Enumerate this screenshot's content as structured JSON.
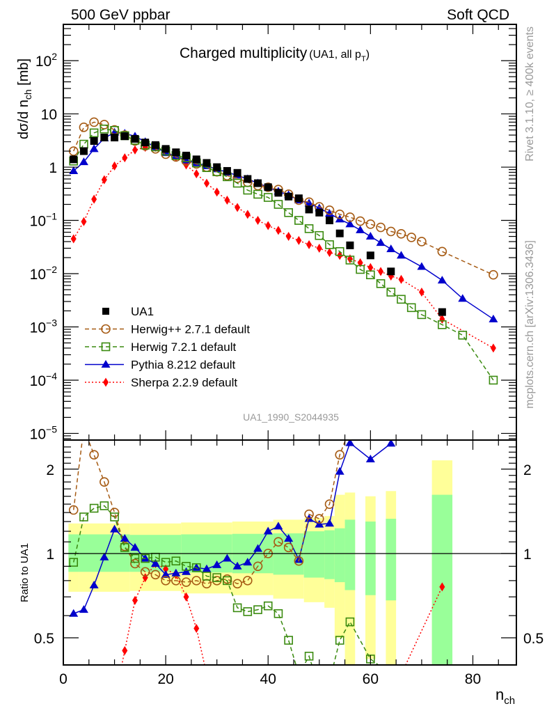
{
  "header": {
    "left": "500 GeV ppbar",
    "right": "Soft QCD"
  },
  "side_labels": {
    "rivet": "Rivet 3.1.10, ≥ 400k events",
    "mcplots": "mcplots.cern.ch [arXiv:1306.3436]"
  },
  "chart_data": [
    {
      "type": "scatter",
      "panel": "main",
      "title": "Charged multiplicity",
      "title_sub": "(UA1, all p",
      "title_sub_T": "T",
      "title_sub_end": ")",
      "analysis_id": "UA1_1990_S2044935",
      "ylabel": "dσ/d n",
      "ylabel_sub": "ch",
      "ylabel_unit": " [mb]",
      "yscale": "log",
      "ylim": [
        7.5e-06,
        480
      ],
      "xlim": [
        0,
        88.5
      ],
      "ytick_labels": [
        {
          "value": 100,
          "base": "10",
          "exp": "2"
        },
        {
          "value": 10,
          "base": "10",
          "exp": ""
        },
        {
          "value": 1,
          "base": "1",
          "exp": ""
        },
        {
          "value": 0.1,
          "base": "10",
          "exp": "−1"
        },
        {
          "value": 0.01,
          "base": "10",
          "exp": "−2"
        },
        {
          "value": 0.001,
          "base": "10",
          "exp": "−3"
        },
        {
          "value": 0.0001,
          "base": "10",
          "exp": "−4"
        },
        {
          "value": 1e-05,
          "base": "10",
          "exp": "−5"
        }
      ],
      "legend_position": "bottom-left",
      "series": [
        {
          "name": "UA1",
          "style": "data",
          "color": "#000000",
          "marker": "square-filled",
          "x": [
            2,
            4,
            6,
            8,
            10,
            12,
            14,
            16,
            18,
            20,
            22,
            24,
            26,
            28,
            30,
            32,
            34,
            36,
            38,
            40,
            42,
            44,
            46,
            48,
            50,
            52,
            54,
            56,
            60,
            64,
            74
          ],
          "values": [
            1.4,
            2.0,
            3.1,
            3.6,
            3.6,
            3.8,
            3.4,
            2.9,
            2.6,
            2.2,
            1.9,
            1.65,
            1.4,
            1.2,
            1.0,
            0.85,
            0.78,
            0.6,
            0.5,
            0.42,
            0.33,
            0.28,
            0.26,
            0.16,
            0.14,
            0.1,
            0.057,
            0.034,
            0.022,
            0.011,
            0.0019
          ]
        },
        {
          "name": "Herwig++ 2.7.1 default",
          "style": "dashed",
          "color": "#a65b14",
          "marker": "circle-open",
          "x": [
            2,
            4,
            6,
            8,
            10,
            12,
            14,
            16,
            18,
            20,
            22,
            24,
            26,
            28,
            30,
            32,
            34,
            36,
            38,
            40,
            42,
            44,
            46,
            48,
            50,
            52,
            54,
            56,
            58,
            60,
            62,
            64,
            66,
            68,
            70,
            74,
            84
          ],
          "values": [
            2.0,
            5.6,
            7.0,
            6.3,
            5.0,
            4.0,
            3.1,
            2.5,
            2.2,
            1.75,
            1.55,
            1.3,
            1.15,
            1.0,
            0.82,
            0.69,
            0.62,
            0.52,
            0.45,
            0.42,
            0.38,
            0.31,
            0.24,
            0.22,
            0.18,
            0.155,
            0.13,
            0.115,
            0.097,
            0.085,
            0.074,
            0.062,
            0.056,
            0.048,
            0.04,
            0.026,
            0.0095
          ]
        },
        {
          "name": "Herwig 7.2.1 default",
          "style": "dashed",
          "color": "#3a8a0f",
          "marker": "square-open",
          "x": [
            2,
            4,
            6,
            8,
            10,
            12,
            14,
            16,
            18,
            20,
            22,
            24,
            26,
            28,
            30,
            32,
            34,
            36,
            38,
            40,
            42,
            44,
            46,
            48,
            50,
            52,
            54,
            56,
            58,
            60,
            62,
            64,
            66,
            68,
            70,
            74,
            78,
            84
          ],
          "values": [
            1.3,
            2.7,
            4.4,
            5.2,
            4.9,
            3.9,
            3.2,
            2.6,
            2.4,
            2.0,
            1.65,
            1.5,
            1.2,
            0.98,
            0.82,
            0.66,
            0.5,
            0.37,
            0.31,
            0.27,
            0.2,
            0.14,
            0.1,
            0.07,
            0.052,
            0.035,
            0.026,
            0.018,
            0.012,
            0.0095,
            0.0065,
            0.0045,
            0.0033,
            0.0023,
            0.0017,
            0.0011,
            0.0007,
            0.0001
          ]
        },
        {
          "name": "Pythia 8.212 default",
          "style": "solid",
          "color": "#0000cc",
          "marker": "triangle-filled",
          "x": [
            2,
            4,
            6,
            8,
            10,
            12,
            14,
            16,
            18,
            20,
            22,
            24,
            26,
            28,
            30,
            32,
            34,
            36,
            38,
            40,
            42,
            44,
            46,
            48,
            50,
            52,
            54,
            56,
            58,
            60,
            62,
            64,
            66,
            70,
            74,
            78,
            84
          ],
          "values": [
            0.85,
            1.25,
            2.2,
            3.5,
            4.5,
            4.3,
            3.8,
            3.0,
            2.4,
            1.85,
            1.6,
            1.35,
            1.2,
            1.05,
            0.92,
            0.8,
            0.7,
            0.6,
            0.5,
            0.42,
            0.35,
            0.3,
            0.24,
            0.21,
            0.17,
            0.135,
            0.105,
            0.085,
            0.066,
            0.05,
            0.038,
            0.029,
            0.022,
            0.0135,
            0.0075,
            0.0034,
            0.0014
          ]
        },
        {
          "name": "Sherpa 2.2.9 default",
          "style": "dotted",
          "color": "#ff0000",
          "marker": "diamond-filled",
          "x": [
            2,
            4,
            6,
            8,
            10,
            12,
            14,
            16,
            18,
            20,
            22,
            24,
            26,
            28,
            30,
            32,
            34,
            36,
            38,
            40,
            42,
            44,
            46,
            48,
            50,
            52,
            54,
            56,
            58,
            60,
            62,
            64,
            66,
            70,
            74,
            84
          ],
          "values": [
            0.045,
            0.095,
            0.25,
            0.58,
            1.05,
            1.5,
            2.1,
            2.35,
            2.35,
            1.95,
            1.55,
            1.1,
            0.75,
            0.5,
            0.34,
            0.24,
            0.175,
            0.13,
            0.1,
            0.08,
            0.065,
            0.05,
            0.042,
            0.035,
            0.03,
            0.025,
            0.022,
            0.019,
            0.016,
            0.013,
            0.011,
            0.009,
            0.0078,
            0.0045,
            0.0014,
            0.0004
          ]
        }
      ]
    },
    {
      "type": "scatter",
      "panel": "ratio",
      "ylabel": "Ratio to UA1",
      "xlabel": "n",
      "xlabel_sub": "ch",
      "yscale": "log",
      "ylim": [
        0.4,
        2.54
      ],
      "xlim": [
        0,
        88.5
      ],
      "xtick_labels": [
        "0",
        "20",
        "40",
        "60",
        "80"
      ],
      "xticks": [
        0,
        20,
        40,
        60,
        80
      ],
      "ytick_labels": [
        {
          "value": 2,
          "label": "2"
        },
        {
          "value": 1,
          "label": "1"
        },
        {
          "value": 0.5,
          "label": "0.5"
        }
      ],
      "reference_line": 1,
      "bands": {
        "inner_color": "#99ff99",
        "outer_color": "#ffff99",
        "bins": [
          {
            "x0": 1,
            "x1": 3,
            "inner": [
              0.86,
              1.17
            ],
            "outer": [
              0.73,
              1.28
            ]
          },
          {
            "x0": 3,
            "x1": 13,
            "inner": [
              0.86,
              1.17
            ],
            "outer": [
              0.73,
              1.28
            ]
          },
          {
            "x0": 13,
            "x1": 23,
            "inner": [
              0.86,
              1.165
            ],
            "outer": [
              0.735,
              1.28
            ]
          },
          {
            "x0": 23,
            "x1": 33,
            "inner": [
              0.855,
              1.17
            ],
            "outer": [
              0.72,
              1.29
            ]
          },
          {
            "x0": 33,
            "x1": 41,
            "inner": [
              0.85,
              1.175
            ],
            "outer": [
              0.71,
              1.3
            ]
          },
          {
            "x0": 41,
            "x1": 47,
            "inner": [
              0.84,
              1.18
            ],
            "outer": [
              0.69,
              1.32
            ]
          },
          {
            "x0": 47,
            "x1": 51,
            "inner": [
              0.82,
              1.2
            ],
            "outer": [
              0.67,
              1.34
            ]
          },
          {
            "x0": 51,
            "x1": 53,
            "inner": [
              0.81,
              1.21
            ],
            "outer": [
              0.64,
              1.36
            ]
          },
          {
            "x0": 53,
            "x1": 55,
            "inner": [
              0.79,
              1.23
            ],
            "outer": [
              0.5,
              1.62
            ]
          },
          {
            "x0": 55,
            "x1": 57,
            "inner": [
              0.74,
              1.32
            ],
            "outer": [
              0.3,
              1.65
            ]
          },
          {
            "x0": 59,
            "x1": 61,
            "inner": [
              0.71,
              1.3
            ],
            "outer": [
              0.42,
              1.6
            ]
          },
          {
            "x0": 63,
            "x1": 65,
            "inner": [
              0.68,
              1.33
            ],
            "outer": [
              0.3,
              1.67
            ]
          },
          {
            "x0": 72,
            "x1": 76,
            "inner": [
              0.3,
              1.62
            ],
            "outer": [
              0.3,
              2.15
            ]
          }
        ]
      },
      "series": [
        {
          "name": "Herwig++ 2.7.1 default",
          "color": "#a65b14",
          "x": [
            2,
            4,
            6,
            8,
            10,
            12,
            14,
            16,
            18,
            20,
            22,
            24,
            26,
            28,
            30,
            32,
            34,
            36,
            38,
            40,
            42,
            44,
            46,
            48,
            50,
            52,
            54,
            56
          ],
          "values": [
            1.43,
            2.8,
            2.25,
            1.8,
            1.4,
            1.06,
            0.92,
            0.86,
            0.84,
            0.8,
            0.8,
            0.79,
            0.8,
            0.78,
            0.8,
            0.81,
            0.78,
            0.8,
            0.9,
            1.0,
            1.1,
            1.05,
            0.94,
            1.38,
            1.33,
            1.5,
            2.25,
            2.8
          ]
        },
        {
          "name": "Herwig 7.2.1 default",
          "color": "#3a8a0f",
          "x": [
            2,
            4,
            6,
            8,
            10,
            12,
            14,
            16,
            18,
            20,
            22,
            24,
            26,
            28,
            30,
            32,
            34,
            36,
            38,
            40,
            42,
            44,
            46,
            48,
            50,
            52,
            54,
            56,
            60,
            64
          ],
          "values": [
            0.93,
            1.35,
            1.45,
            1.48,
            1.35,
            1.05,
            0.96,
            0.96,
            0.97,
            0.93,
            0.94,
            0.9,
            0.89,
            0.83,
            0.82,
            0.8,
            0.64,
            0.62,
            0.63,
            0.65,
            0.61,
            0.49,
            0.37,
            0.43,
            0.33,
            0.35,
            0.49,
            0.57,
            0.42,
            0.37
          ]
        },
        {
          "name": "Pythia 8.212 default",
          "color": "#0000cc",
          "x": [
            2,
            4,
            6,
            8,
            10,
            12,
            14,
            16,
            18,
            20,
            22,
            24,
            26,
            28,
            30,
            32,
            34,
            36,
            38,
            40,
            42,
            44,
            46,
            48,
            50,
            52,
            54,
            56,
            60,
            64
          ],
          "values": [
            0.61,
            0.63,
            0.77,
            0.97,
            1.22,
            1.13,
            1.05,
            0.96,
            0.92,
            0.84,
            0.85,
            0.86,
            0.89,
            0.88,
            0.91,
            0.96,
            0.9,
            0.93,
            1.04,
            1.2,
            1.25,
            1.13,
            0.95,
            1.33,
            1.27,
            1.28,
            1.96,
            2.48,
            2.17,
            2.47
          ]
        },
        {
          "name": "Sherpa 2.2.9 default",
          "color": "#ff0000",
          "x": [
            10,
            12,
            14,
            16,
            18,
            20,
            22,
            24,
            26,
            28,
            66,
            74
          ],
          "values": [
            0.3,
            0.45,
            0.68,
            0.82,
            0.92,
            0.88,
            0.84,
            0.7,
            0.54,
            0.37,
            0.37,
            0.76
          ]
        }
      ]
    }
  ]
}
